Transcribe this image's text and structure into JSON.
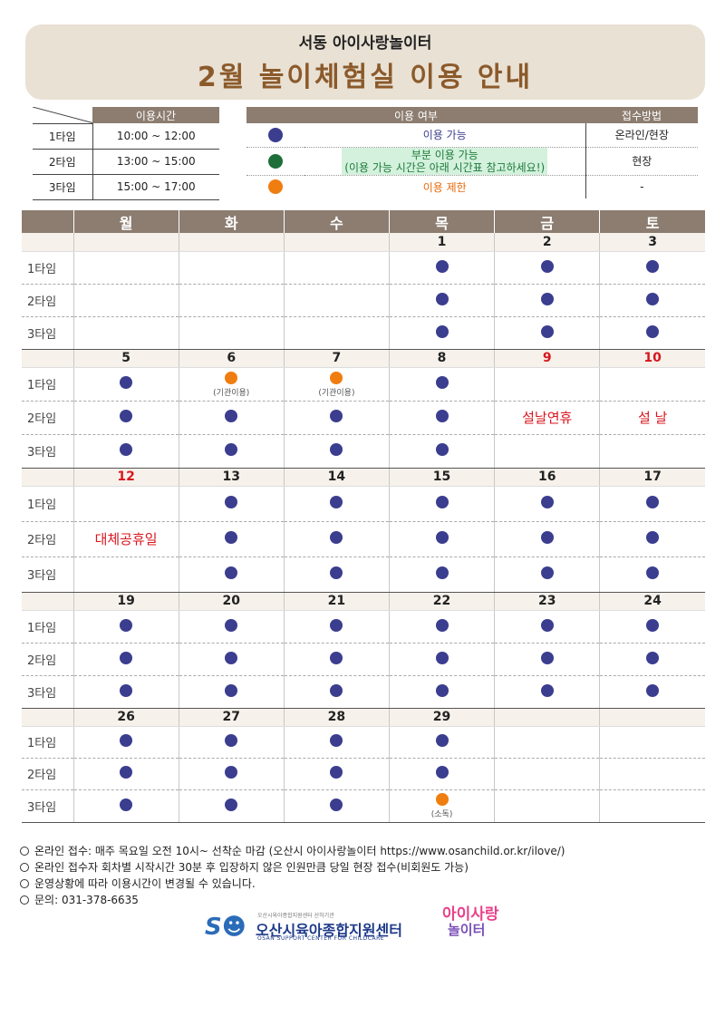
{
  "header": {
    "subtitle": "서동 아이사랑놀이터",
    "title": "2월 놀이체험실 이용 안내"
  },
  "time_table": {
    "header": "이용시간",
    "rows": [
      {
        "label": "1타임",
        "time": "10:00 ~ 12:00"
      },
      {
        "label": "2타임",
        "time": "13:00 ~ 15:00"
      },
      {
        "label": "3타임",
        "time": "15:00 ~ 17:00"
      }
    ]
  },
  "legend": {
    "header_usage": "이용 여부",
    "header_method": "접수방법",
    "available": {
      "text": "이용 가능",
      "method": "온라인/현장",
      "color": "#3b3d8f"
    },
    "partial": {
      "line1": "부분 이용 가능",
      "line2": "(이용 가능 시간은 아래 시간표 참고하세요!)",
      "method": "현장",
      "color": "#1e6e3a"
    },
    "limited": {
      "text": "이용 제한",
      "method": "-",
      "color": "#f07d10"
    }
  },
  "calendar": {
    "weekdays": [
      "월",
      "화",
      "수",
      "목",
      "금",
      "토"
    ],
    "slot_labels": [
      "1타임",
      "2타임",
      "3타임"
    ],
    "weeks": [
      {
        "dates": [
          "",
          "",
          "",
          "1",
          "2",
          "3"
        ]
      },
      {
        "dates": [
          "5",
          "6",
          "7",
          "8",
          "9",
          "10"
        ]
      },
      {
        "dates": [
          "12",
          "13",
          "14",
          "15",
          "16",
          "17"
        ]
      },
      {
        "dates": [
          "19",
          "20",
          "21",
          "22",
          "23",
          "24"
        ]
      },
      {
        "dates": [
          "26",
          "27",
          "28",
          "29",
          "",
          ""
        ]
      }
    ],
    "notes": {
      "agency": "(기관이용)",
      "disinfect": "(소독)"
    },
    "holidays": {
      "seollal_holiday": "설날연휴",
      "seollal": "설 날",
      "substitute": "대체공휴일"
    }
  },
  "footnotes": [
    "온라인 접수: 매주 목요일 오전 10시~ 선착순 마감 (오산시 아이사랑놀이터 https://www.osanchild.or.kr/ilove/)",
    "온라인 접수자 회차별 시작시간 30분 후 입장하지 않은 인원만큼 당일 현장 접수(비회원도 가능)",
    "운영상황에 따라 이용시간이 변경될 수 있습니다.",
    "문의: 031-378-6635"
  ],
  "logos": {
    "center_small": "오산시육아종합지원센터 산하기관",
    "center_name": "오산시육아종합지원센터",
    "center_en": "OSAN SUPPORT CENTER FOR CHILDCARE",
    "playground_line1": "아이사랑",
    "playground_line2": "놀이터"
  }
}
